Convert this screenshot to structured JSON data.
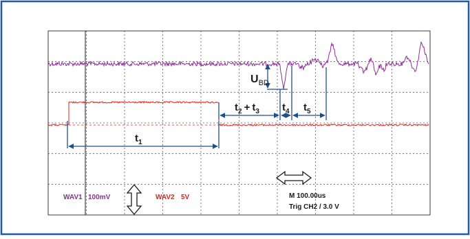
{
  "colors": {
    "frame": "#1f5aa6",
    "grid": "#4a4a4a",
    "wav1": "#8e2c99",
    "wav2": "#e3231b",
    "annotation": "#1f4e8c",
    "text": "#1a1a1a"
  },
  "labels": {
    "ubd_main": "U",
    "ubd_sub": "BD",
    "t1_main": "t",
    "t1_sub": "1",
    "t23_a": "t",
    "t23_a_sub": "2",
    "t23_plus": "+",
    "t23_b": "t",
    "t23_b_sub": "3",
    "t4_main": "t",
    "t4_sub": "4",
    "t5_main": "t",
    "t5_sub": "5"
  },
  "status": {
    "wav1_name": "WAV1",
    "wav1_scale": "100mV",
    "wav2_name": "WAV2",
    "wav2_scale": "5V",
    "timebase": "M 100.00us",
    "trigger": "Trig CH2 / 3.0 V"
  },
  "icons": {
    "vertical_arrow": "double-arrow-vertical-icon",
    "horizontal_arrow": "double-arrow-horizontal-icon"
  }
}
